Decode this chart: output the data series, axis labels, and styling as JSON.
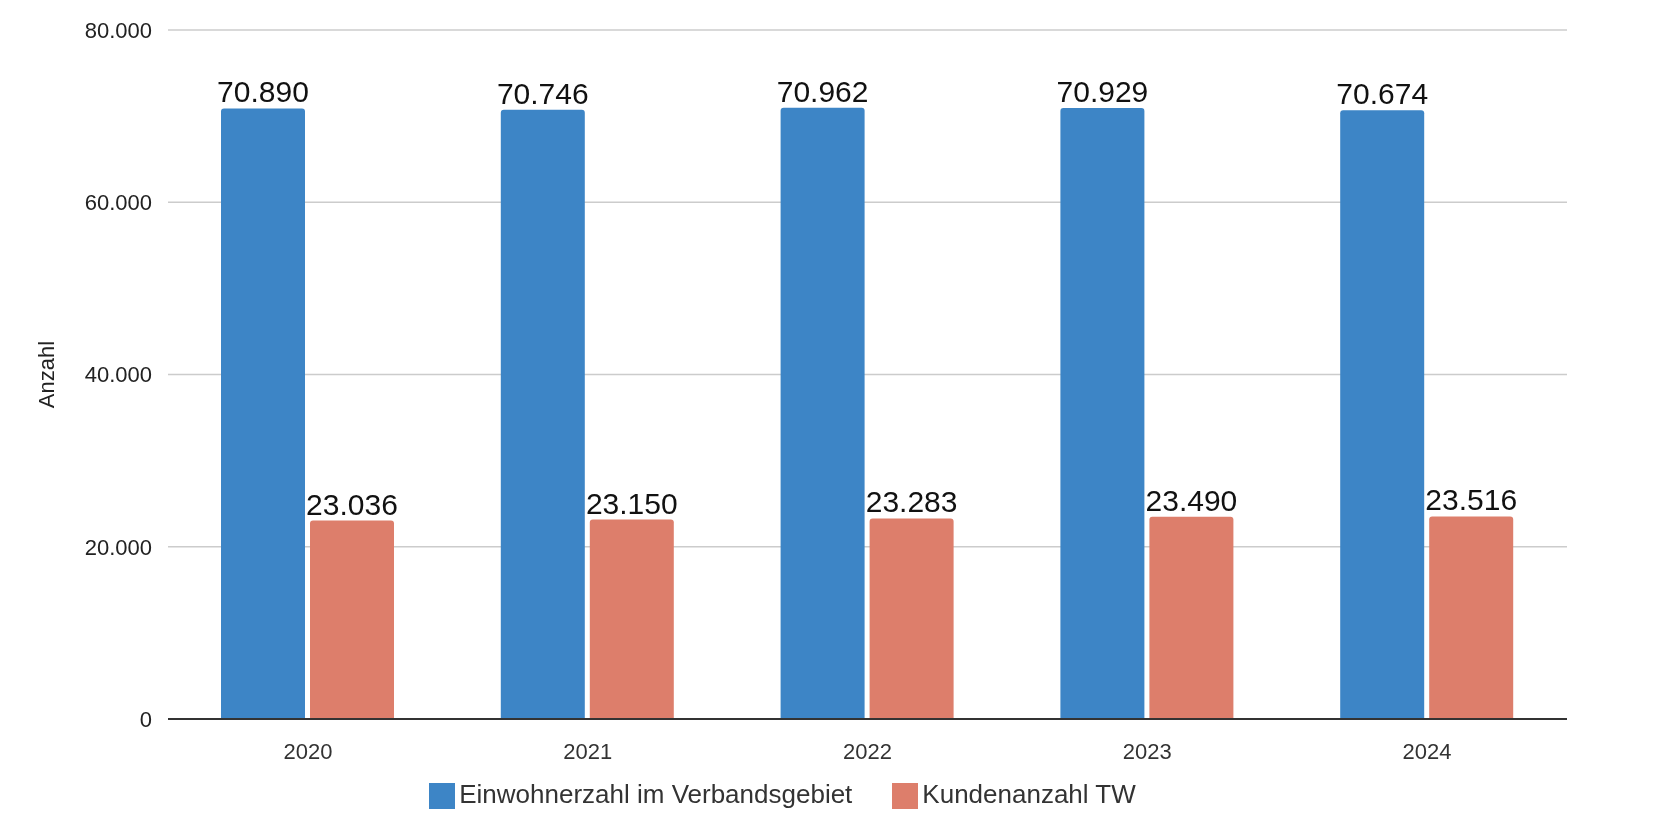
{
  "chart_data": {
    "type": "bar",
    "ylabel": "Anzahl",
    "categories": [
      "2020",
      "2021",
      "2022",
      "2023",
      "2024"
    ],
    "series": [
      {
        "name": "Einwohnerzahl im Verbandsgebiet",
        "color": "#3d85c6",
        "values": [
          70890,
          70746,
          70962,
          70929,
          70674
        ],
        "value_labels": [
          "70.890",
          "70.746",
          "70.962",
          "70.929",
          "70.674"
        ]
      },
      {
        "name": "Kundenanzahl TW",
        "color": "#dd7e6b",
        "values": [
          23036,
          23150,
          23283,
          23490,
          23516
        ],
        "value_labels": [
          "23.036",
          "23.150",
          "23.283",
          "23.490",
          "23.516"
        ]
      }
    ],
    "ylim": [
      0,
      80000
    ],
    "yticks": [
      {
        "value": 0,
        "label": "0"
      },
      {
        "value": 20000,
        "label": "20.000"
      },
      {
        "value": 40000,
        "label": "40.000"
      },
      {
        "value": 60000,
        "label": "60.000"
      },
      {
        "value": 80000,
        "label": "80.000"
      }
    ],
    "grid": "y",
    "legend": "bottom"
  }
}
